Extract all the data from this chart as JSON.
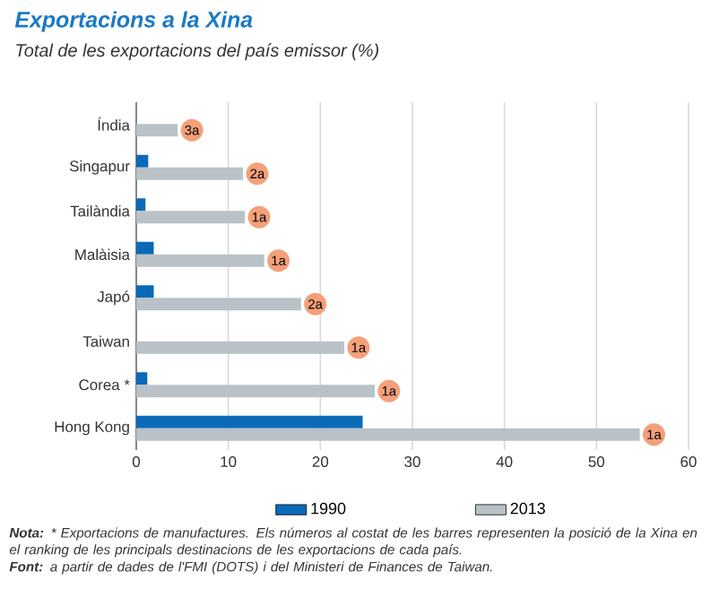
{
  "chart_data": {
    "type": "bar",
    "orientation": "horizontal",
    "title": "Exportacions a la Xina",
    "subtitle": "Total de les exportacions del país emissor (%)",
    "categories": [
      "Índia",
      "Singapur",
      "Tailàndia",
      "Malàisia",
      "Japó",
      "Taiwan",
      "Corea *",
      "Hong Kong"
    ],
    "series": [
      {
        "name": "1990",
        "color": "#0a6ab8",
        "values": [
          null,
          1.3,
          1.0,
          1.9,
          1.9,
          null,
          1.2,
          24.6
        ]
      },
      {
        "name": "2013",
        "color": "#b8c2c7",
        "values": [
          4.5,
          11.6,
          11.8,
          13.9,
          17.9,
          22.6,
          25.9,
          54.7
        ]
      }
    ],
    "xlim": [
      0,
      60
    ],
    "xticks": [
      0,
      10,
      20,
      30,
      40,
      50,
      60
    ],
    "grid": "x",
    "legend": "bottom",
    "annotations": [
      {
        "text": "3a",
        "x": 4.5,
        "y": "Índia"
      },
      {
        "text": "2a",
        "x": 11.6,
        "y": "Singapur"
      },
      {
        "text": "1a",
        "x": 11.8,
        "y": "Tailàndia"
      },
      {
        "text": "1a",
        "x": 13.9,
        "y": "Malàisia"
      },
      {
        "text": "2a",
        "x": 17.9,
        "y": "Japó"
      },
      {
        "text": "1a",
        "x": 22.6,
        "y": "Taiwan"
      },
      {
        "text": "1a",
        "x": 25.9,
        "y": "Corea *"
      },
      {
        "text": "1a",
        "x": 54.7,
        "y": "Hong Kong"
      },
      "**Nota:** * Exportacions de manufactures. Els números al costat de les barres representen la posició de la Xina en el ranking de les principals destinacions de les exportacions de cada país.",
      "**Font:** a partir de dades de l'FMI (DOTS) i del Ministeri de Finances de Taiwan."
    ]
  }
}
